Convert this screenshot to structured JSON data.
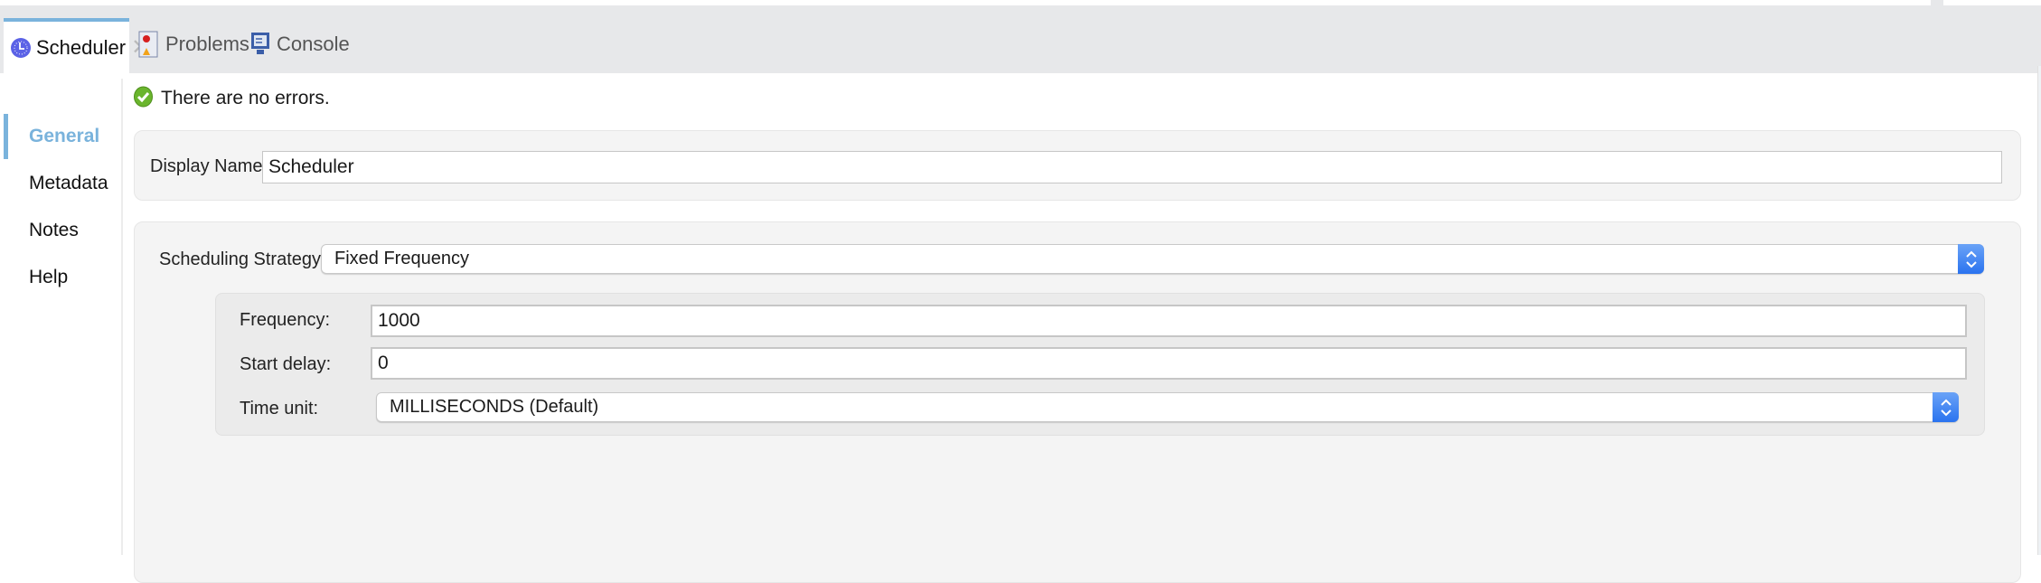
{
  "tabs": [
    {
      "label": "Scheduler",
      "icon": "clock-icon",
      "active": true
    },
    {
      "label": "Problems",
      "icon": "problems-icon"
    },
    {
      "label": "Console",
      "icon": "console-icon"
    }
  ],
  "status": {
    "message": "There are no errors.",
    "icon": "check-circle-icon"
  },
  "sidebar": {
    "items": [
      {
        "label": "General",
        "active": true
      },
      {
        "label": "Metadata"
      },
      {
        "label": "Notes"
      },
      {
        "label": "Help"
      }
    ]
  },
  "general": {
    "display_name_label": "Display Name:",
    "display_name_value": "Scheduler"
  },
  "scheduling": {
    "strategy_label": "Scheduling Strategy",
    "strategy_value": "Fixed Frequency",
    "frequency_label": "Frequency:",
    "frequency_value": "1000",
    "start_delay_label": "Start delay:",
    "start_delay_value": "0",
    "time_unit_label": "Time unit:",
    "time_unit_value": "MILLISECONDS (Default)"
  },
  "colors": {
    "accent": "#7ab3dc",
    "select_button": "#2a73ef",
    "success": "#6ab52d"
  }
}
